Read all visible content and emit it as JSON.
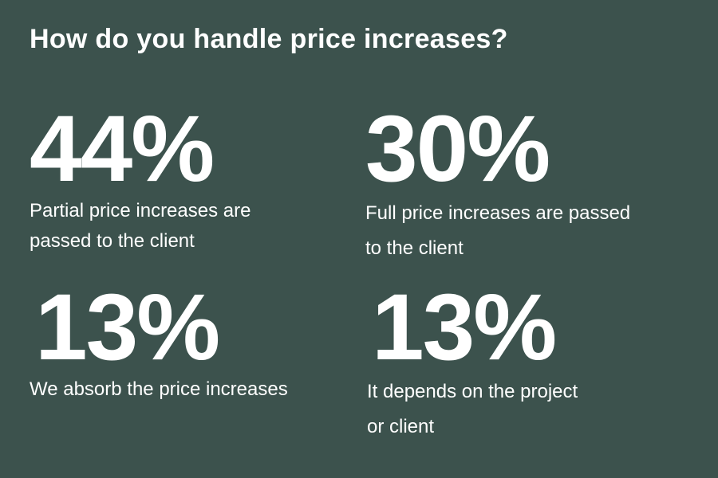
{
  "title": "How do you handle price increases?",
  "stats": [
    {
      "value": "44%",
      "label_lines": [
        "Partial price increases are",
        "passed to the client"
      ]
    },
    {
      "value": "30%",
      "label_lines": [
        "Full price increases are passed",
        "to the client"
      ]
    },
    {
      "value": "13%",
      "label_lines": [
        "We absorb the price increases"
      ]
    },
    {
      "value": "13%",
      "label_lines": [
        "It depends on the project",
        "or client"
      ]
    }
  ]
}
